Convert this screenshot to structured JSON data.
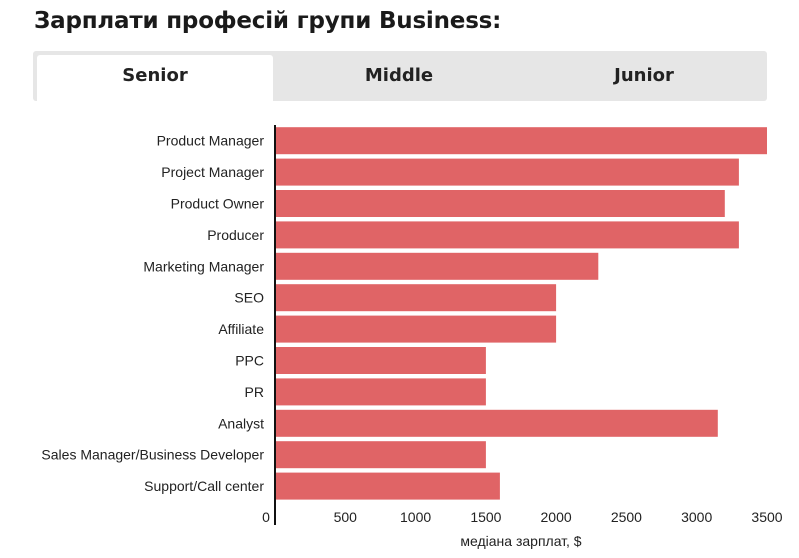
{
  "title": "Зарплати професій групи Business:",
  "tabs": [
    {
      "label": "Senior",
      "active": true
    },
    {
      "label": "Middle",
      "active": false
    },
    {
      "label": "Junior",
      "active": false
    }
  ],
  "colors": {
    "bar": "#e06466",
    "axis": "#111111"
  },
  "chart_data": {
    "type": "bar",
    "orientation": "horizontal",
    "title": "",
    "xlabel": "медіана зарплат, $",
    "ylabel": "",
    "xlim": [
      0,
      3500
    ],
    "x_ticks": [
      0,
      500,
      1000,
      1500,
      2000,
      2500,
      3000,
      3500
    ],
    "grid": false,
    "categories": [
      "Product Manager",
      "Project Manager",
      "Product Owner",
      "Producer",
      "Marketing Manager",
      "SEO",
      "Affiliate",
      "PPC",
      "PR",
      "Analyst",
      "Sales Manager/Business Developer",
      "Support/Call center"
    ],
    "values": [
      3500,
      3300,
      3200,
      3300,
      2300,
      2000,
      2000,
      1500,
      1500,
      3150,
      1500,
      1600
    ]
  }
}
